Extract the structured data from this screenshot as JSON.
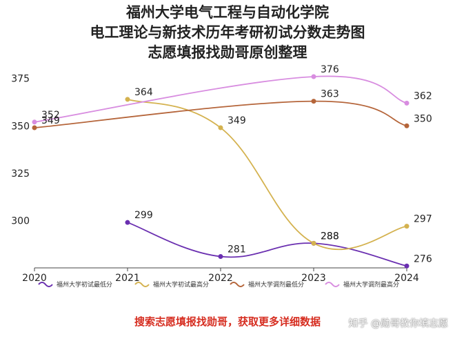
{
  "title_lines": [
    "福州大学电气工程与自动化学院",
    "电工理论与新技术历年考研初试分数走势图",
    "志愿填报找勋哥原创整理"
  ],
  "footer_note": "搜索志愿填报找勋哥，获取更多详细数据",
  "watermark": "知乎 @勋哥教你填志愿",
  "chart_data": {
    "type": "line",
    "x": [
      2020,
      2021,
      2022,
      2023,
      2024
    ],
    "ylim": [
      275,
      380
    ],
    "yticks": [
      300,
      325,
      350,
      375
    ],
    "xlabel": "",
    "ylabel": "",
    "grid": false,
    "legend_position": "bottom",
    "series": [
      {
        "name": "福州大学初试最低分",
        "color": "#6a2fb0",
        "values": [
          null,
          299,
          281,
          288,
          276
        ],
        "labels": [
          null,
          "299",
          "281",
          "288",
          "276"
        ]
      },
      {
        "name": "福州大学初试最高分",
        "color": "#d4b24f",
        "values": [
          null,
          364,
          349,
          288,
          297
        ],
        "labels": [
          null,
          "364",
          "349",
          "288",
          "297"
        ]
      },
      {
        "name": "福州大学调剂最低分",
        "color": "#b5653a",
        "values": [
          349,
          null,
          null,
          363,
          350
        ],
        "labels": [
          "349",
          null,
          null,
          "363",
          "350"
        ]
      },
      {
        "name": "福州大学调剂最高分",
        "color": "#d88de0",
        "values": [
          352,
          null,
          null,
          376,
          362
        ],
        "labels": [
          "352",
          null,
          null,
          "376",
          "362"
        ]
      }
    ]
  }
}
